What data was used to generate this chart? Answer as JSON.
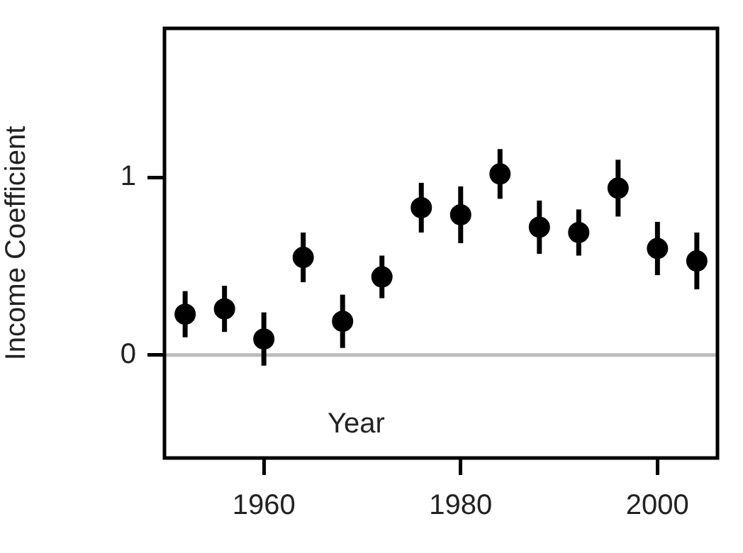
{
  "chart_data": {
    "type": "scatter",
    "xlabel": "Year",
    "ylabel": "Income Coefficient",
    "x": [
      1952,
      1956,
      1960,
      1964,
      1968,
      1972,
      1976,
      1980,
      1984,
      1988,
      1992,
      1996,
      2000,
      2004
    ],
    "values": [
      0.23,
      0.26,
      0.09,
      0.55,
      0.19,
      0.44,
      0.83,
      0.79,
      1.02,
      0.72,
      0.69,
      0.94,
      0.6,
      0.53
    ],
    "errors": [
      0.13,
      0.13,
      0.15,
      0.14,
      0.15,
      0.12,
      0.14,
      0.16,
      0.14,
      0.15,
      0.13,
      0.16,
      0.15,
      0.16
    ],
    "color": "#000000",
    "marker": "circle",
    "xlim": [
      1949.9,
      2006.1
    ],
    "xticks": [
      1960,
      1980,
      2000
    ],
    "ylim": [
      -0.58,
      1.84
    ],
    "yticks": [
      0,
      1
    ],
    "ref_lines": [
      {
        "axis": "y",
        "value": 0,
        "color": "#bbbbbb"
      }
    ],
    "grid": false,
    "legend": false
  }
}
